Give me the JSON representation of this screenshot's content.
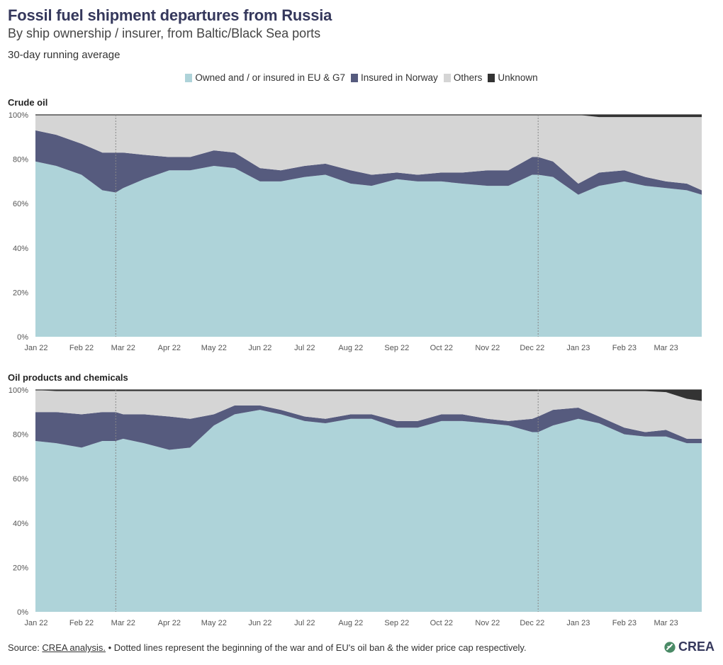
{
  "title": "Fossil fuel shipment departures from Russia",
  "subtitle": "By ship ownership / insurer, from Baltic/Black Sea ports",
  "note": "30-day running average",
  "legend": [
    {
      "label": "Owned and / or insured in EU & G7",
      "color": "#aed3d9"
    },
    {
      "label": "Insured in Norway",
      "color": "#565b7e"
    },
    {
      "label": "Others",
      "color": "#d5d5d5"
    },
    {
      "label": "Unknown",
      "color": "#333333"
    }
  ],
  "footer": {
    "source_prefix": "Source: ",
    "source_link": "CREA analysis.",
    "text": " • Dotted lines represent the beginning of the war and of EU's oil ban & the wider price cap respectively."
  },
  "logo": "CREA",
  "chart_data": [
    {
      "type": "area",
      "stacked": true,
      "title": "Crude oil",
      "x": [
        "2022-01-01",
        "2022-01-15",
        "2022-02-01",
        "2022-02-15",
        "2022-02-24",
        "2022-03-01",
        "2022-03-15",
        "2022-04-01",
        "2022-04-15",
        "2022-05-01",
        "2022-05-15",
        "2022-06-01",
        "2022-06-15",
        "2022-07-01",
        "2022-07-15",
        "2022-08-01",
        "2022-08-15",
        "2022-09-01",
        "2022-09-15",
        "2022-10-01",
        "2022-10-15",
        "2022-11-01",
        "2022-11-15",
        "2022-12-01",
        "2022-12-05",
        "2022-12-15",
        "2023-01-01",
        "2023-01-15",
        "2023-02-01",
        "2023-02-15",
        "2023-03-01",
        "2023-03-15",
        "2023-03-25"
      ],
      "series": [
        {
          "name": "Owned and / or insured in EU & G7",
          "values": [
            79,
            77,
            73,
            66,
            65,
            67,
            71,
            75,
            75,
            77,
            76,
            70,
            70,
            72,
            73,
            69,
            68,
            71,
            70,
            70,
            69,
            68,
            68,
            73,
            73,
            72,
            64,
            68,
            70,
            68,
            67,
            66,
            64
          ]
        },
        {
          "name": "Insured in Norway",
          "values": [
            14,
            14,
            14,
            17,
            18,
            16,
            11,
            6,
            6,
            7,
            7,
            6,
            5,
            5,
            5,
            6,
            5,
            3,
            3,
            4,
            5,
            7,
            7,
            8,
            8,
            7,
            5,
            6,
            5,
            4,
            3,
            3,
            2
          ]
        },
        {
          "name": "Others",
          "values": [
            7,
            9,
            13,
            17,
            17,
            17,
            18,
            19,
            19,
            16,
            17,
            24,
            25,
            23,
            22,
            25,
            27,
            26,
            27,
            26,
            26,
            25,
            25,
            19,
            19,
            21,
            31,
            25,
            24,
            27,
            29,
            30,
            33
          ]
        },
        {
          "name": "Unknown",
          "values": [
            0,
            0,
            0,
            0,
            0,
            0,
            0,
            0,
            0,
            0,
            0,
            0,
            0,
            0,
            0,
            0,
            0,
            0,
            0,
            0,
            0,
            0,
            0,
            0,
            0,
            0,
            0,
            1,
            1,
            1,
            1,
            1,
            1
          ]
        }
      ],
      "x_ticks": [
        "Jan 22",
        "Feb 22",
        "Mar 22",
        "Apr 22",
        "May 22",
        "Jun 22",
        "Jul 22",
        "Aug 22",
        "Sep 22",
        "Oct 22",
        "Nov 22",
        "Dec 22",
        "Jan 23",
        "Feb 23",
        "Mar 23"
      ],
      "y_ticks": [
        "0%",
        "20%",
        "40%",
        "60%",
        "80%",
        "100%"
      ],
      "ylim": [
        0,
        100
      ],
      "event_lines": [
        "2022-02-24",
        "2022-12-05"
      ]
    },
    {
      "type": "area",
      "stacked": true,
      "title": "Oil products and chemicals",
      "x": [
        "2022-01-01",
        "2022-01-15",
        "2022-02-01",
        "2022-02-15",
        "2022-02-24",
        "2022-03-01",
        "2022-03-15",
        "2022-04-01",
        "2022-04-15",
        "2022-05-01",
        "2022-05-15",
        "2022-06-01",
        "2022-06-15",
        "2022-07-01",
        "2022-07-15",
        "2022-08-01",
        "2022-08-15",
        "2022-09-01",
        "2022-09-15",
        "2022-10-01",
        "2022-10-15",
        "2022-11-01",
        "2022-11-15",
        "2022-12-01",
        "2022-12-05",
        "2022-12-15",
        "2023-01-01",
        "2023-01-15",
        "2023-02-01",
        "2023-02-15",
        "2023-03-01",
        "2023-03-15",
        "2023-03-25"
      ],
      "series": [
        {
          "name": "Owned and / or insured in EU & G7",
          "values": [
            77,
            76,
            74,
            77,
            77,
            78,
            76,
            73,
            74,
            84,
            89,
            91,
            89,
            86,
            85,
            87,
            87,
            83,
            83,
            86,
            86,
            85,
            84,
            81,
            81,
            84,
            87,
            85,
            80,
            79,
            79,
            76,
            76
          ]
        },
        {
          "name": "Insured in Norway",
          "values": [
            13,
            14,
            15,
            13,
            13,
            11,
            13,
            15,
            13,
            5,
            4,
            2,
            2,
            2,
            2,
            2,
            2,
            3,
            3,
            3,
            3,
            2,
            2,
            6,
            7,
            7,
            5,
            3,
            3,
            2,
            3,
            2,
            2
          ]
        },
        {
          "name": "Others",
          "values": [
            10,
            9.5,
            10.5,
            9.5,
            9.5,
            10.5,
            10.5,
            11.5,
            12.5,
            10.5,
            6.5,
            6.5,
            8.5,
            11.5,
            12.5,
            10.5,
            10.5,
            13.5,
            13.5,
            10.5,
            10.5,
            12.5,
            13.5,
            12.5,
            11.5,
            8.5,
            7.5,
            11.5,
            16.5,
            18.5,
            17,
            18,
            17
          ]
        },
        {
          "name": "Unknown",
          "values": [
            0,
            0.5,
            0.5,
            0.5,
            0.5,
            0.5,
            0.5,
            0.5,
            0.5,
            0.5,
            0.5,
            0.5,
            0.5,
            0.5,
            0.5,
            0.5,
            0.5,
            0.5,
            0.5,
            0.5,
            0.5,
            0.5,
            0.5,
            0.5,
            0.5,
            0.5,
            0.5,
            0.5,
            0.5,
            0.5,
            1,
            4,
            5
          ]
        }
      ],
      "x_ticks": [
        "Jan 22",
        "Feb 22",
        "Mar 22",
        "Apr 22",
        "May 22",
        "Jun 22",
        "Jul 22",
        "Aug 22",
        "Sep 22",
        "Oct 22",
        "Nov 22",
        "Dec 22",
        "Jan 23",
        "Feb 23",
        "Mar 23"
      ],
      "y_ticks": [
        "0%",
        "20%",
        "40%",
        "60%",
        "80%",
        "100%"
      ],
      "ylim": [
        0,
        100
      ],
      "event_lines": [
        "2022-02-24",
        "2022-12-05"
      ]
    }
  ]
}
